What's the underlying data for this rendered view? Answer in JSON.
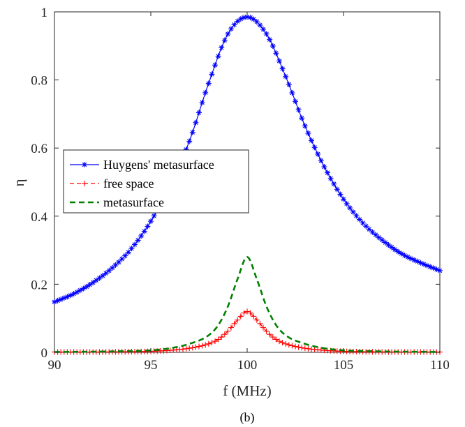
{
  "chart_data": {
    "type": "line",
    "xlabel": "f (MHz)",
    "ylabel": "η",
    "caption": "(b)",
    "xlim": [
      90,
      110
    ],
    "ylim": [
      0,
      1
    ],
    "xticks": [
      90,
      95,
      100,
      105,
      110
    ],
    "yticks": [
      0,
      0.2,
      0.4,
      0.6,
      0.8,
      1
    ],
    "ytick_labels": [
      "0",
      "0.2",
      "0.4",
      "0.6",
      "0.8",
      "1"
    ],
    "grid": false,
    "legend_position": "middle-left",
    "series": [
      {
        "name": "Huygens' metasurface",
        "color": "#0000ff",
        "style": "solid",
        "marker": "asterisk",
        "x": [
          90,
          91,
          92,
          93,
          94,
          95,
          96,
          97,
          98,
          99,
          100,
          101,
          102,
          103,
          104,
          105,
          106,
          107,
          108,
          109,
          110
        ],
        "values": [
          0.148,
          0.172,
          0.205,
          0.248,
          0.305,
          0.385,
          0.49,
          0.62,
          0.79,
          0.935,
          0.985,
          0.935,
          0.81,
          0.665,
          0.545,
          0.45,
          0.38,
          0.33,
          0.29,
          0.263,
          0.24
        ]
      },
      {
        "name": "free space",
        "color": "#ff0000",
        "style": "dashed",
        "marker": "plus",
        "x": [
          90,
          92,
          94,
          95,
          96,
          97,
          98,
          98.5,
          99,
          99.5,
          100,
          100.5,
          101,
          101.5,
          102,
          103,
          104,
          105,
          106,
          108,
          110
        ],
        "values": [
          0.001,
          0.001,
          0.002,
          0.003,
          0.006,
          0.012,
          0.025,
          0.038,
          0.062,
          0.095,
          0.12,
          0.095,
          0.062,
          0.038,
          0.025,
          0.012,
          0.006,
          0.003,
          0.002,
          0.001,
          0.001
        ]
      },
      {
        "name": "metasurface",
        "color": "#008000",
        "style": "dashed",
        "marker": "none",
        "x": [
          90,
          92,
          94,
          95,
          96,
          97,
          98,
          98.5,
          99,
          99.5,
          100,
          100.5,
          101,
          101.5,
          102,
          103,
          104,
          105,
          106,
          108,
          110
        ],
        "values": [
          0.001,
          0.002,
          0.004,
          0.006,
          0.012,
          0.025,
          0.05,
          0.08,
          0.135,
          0.215,
          0.28,
          0.215,
          0.135,
          0.08,
          0.05,
          0.025,
          0.012,
          0.006,
          0.004,
          0.002,
          0.001
        ]
      }
    ]
  }
}
